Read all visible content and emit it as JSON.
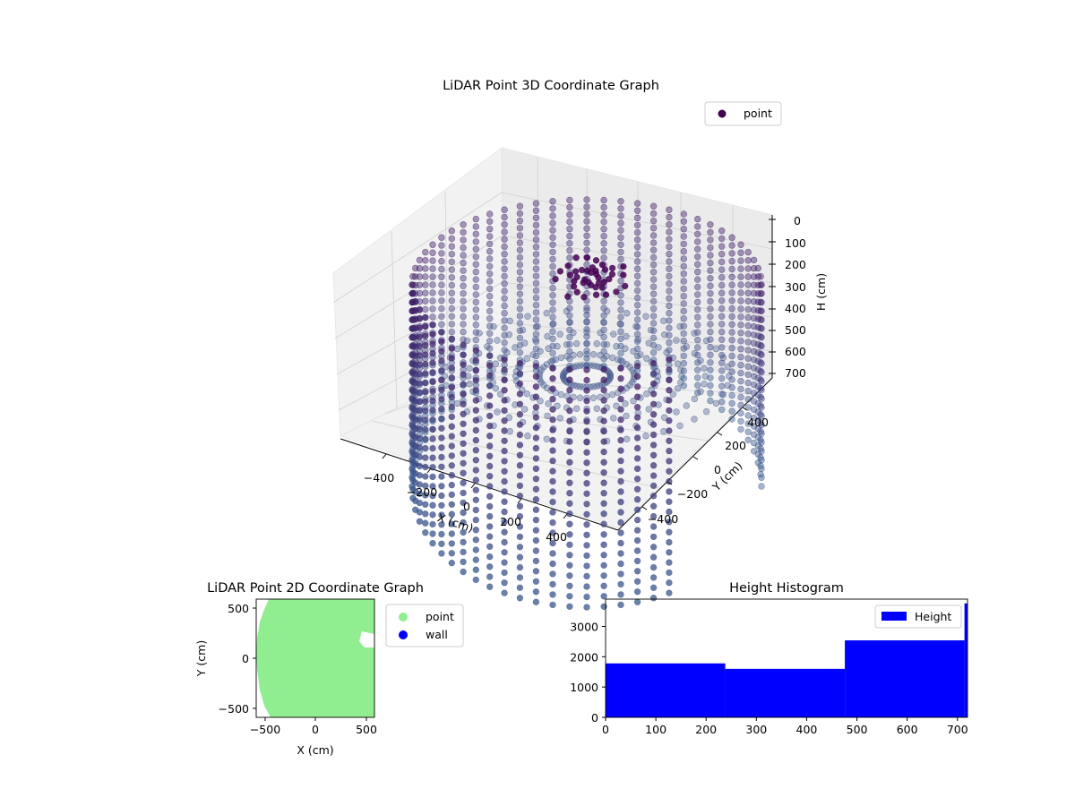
{
  "chart_data": [
    {
      "type": "scatter",
      "title": "LiDAR Point 3D Coordinate Graph",
      "xlabel": "X (cm)",
      "ylabel": "Y (cm)",
      "zlabel": "H (cm)",
      "x_ticks": [
        "−400",
        "−200",
        "0",
        "200",
        "400"
      ],
      "y_ticks": [
        "−400",
        "−200",
        "0",
        "200",
        "400"
      ],
      "z_ticks": [
        "0",
        "100",
        "200",
        "300",
        "400",
        "500",
        "600",
        "700"
      ],
      "legend": [
        {
          "name": "point",
          "color": "#440154"
        }
      ],
      "legend_position": "top-right",
      "colormap": "viridis",
      "z_inverted": true
    },
    {
      "type": "scatter",
      "title": "LiDAR Point 2D Coordinate Graph",
      "xlabel": "X (cm)",
      "ylabel": "Y (cm)",
      "xlim": [
        -580,
        580
      ],
      "ylim": [
        -580,
        580
      ],
      "x_ticks": [
        "−500",
        "0",
        "500"
      ],
      "y_ticks": [
        "−500",
        "0",
        "500"
      ],
      "series": [
        {
          "name": "point",
          "color": "#90ee90"
        },
        {
          "name": "wall",
          "color": "#0000ff"
        }
      ],
      "legend_position": "outside-right"
    },
    {
      "type": "bar",
      "title": "Height Histogram",
      "xlim": [
        0,
        720
      ],
      "ylim": [
        0,
        3900
      ],
      "x_ticks": [
        "0",
        "100",
        "200",
        "300",
        "400",
        "500",
        "600",
        "700"
      ],
      "y_ticks": [
        "0",
        "1000",
        "2000",
        "3000"
      ],
      "bins": [
        [
          0,
          238,
          1780
        ],
        [
          238,
          476,
          1600
        ],
        [
          476,
          714,
          2540
        ],
        [
          714,
          720,
          3760
        ]
      ],
      "series": [
        {
          "name": "Height",
          "color": "#0000ff"
        }
      ],
      "legend_position": "top-right"
    }
  ]
}
